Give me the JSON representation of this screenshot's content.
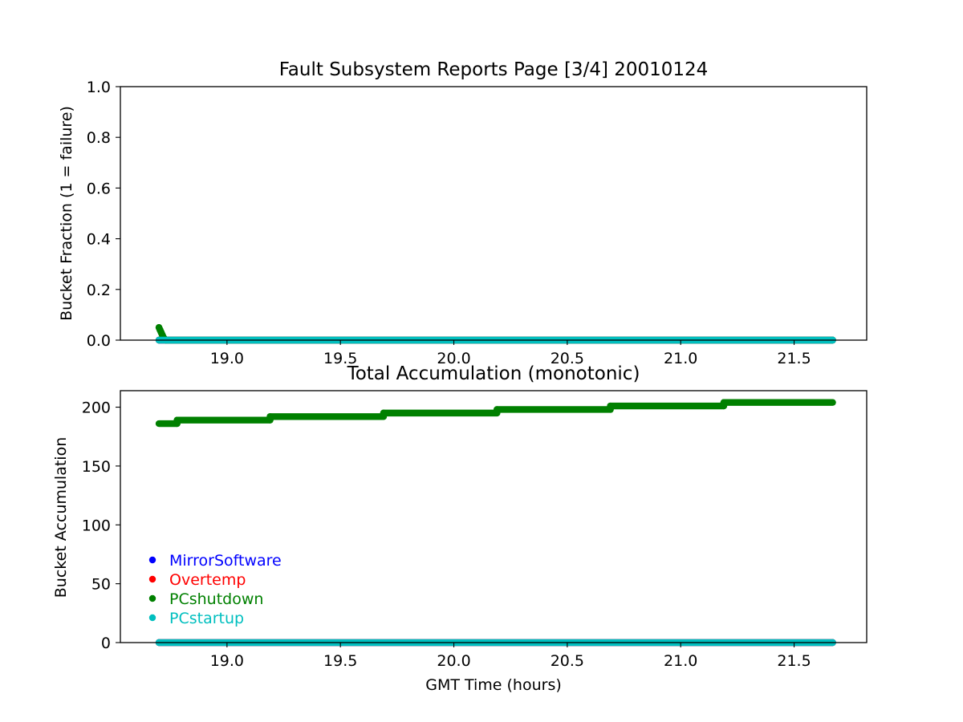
{
  "chart_data": [
    {
      "type": "scatter",
      "title": "Fault Subsystem Reports Page [3/4] 20010124",
      "xlabel": "",
      "ylabel": "Bucket Fraction (1 = failure)",
      "xlim": [
        18.53,
        21.82
      ],
      "ylim": [
        0,
        1
      ],
      "xticks": [
        "19.0",
        "19.5",
        "20.0",
        "20.5",
        "21.0",
        "21.5"
      ],
      "yticks": [
        "0.0",
        "0.2",
        "0.4",
        "0.6",
        "0.8",
        "1.0"
      ],
      "series": [
        {
          "name": "MirrorSoftware",
          "color": "#0000ff",
          "x": [
            18.7,
            21.67
          ],
          "y": [
            0,
            0
          ]
        },
        {
          "name": "Overtemp",
          "color": "#ff0000",
          "x": [
            18.7,
            21.67
          ],
          "y": [
            0,
            0
          ]
        },
        {
          "name": "PCshutdown",
          "color": "#008000",
          "x": [
            18.7,
            18.705,
            18.71,
            18.715,
            18.72,
            18.73,
            21.67
          ],
          "y": [
            0.05,
            0.04,
            0.03,
            0.02,
            0.01,
            0,
            0
          ]
        },
        {
          "name": "PCstartup",
          "color": "#00bfbf",
          "x": [
            18.7,
            21.67
          ],
          "y": [
            0,
            0
          ]
        }
      ]
    },
    {
      "type": "scatter",
      "title": "Total Accumulation (monotonic)",
      "xlabel": "GMT Time (hours)",
      "ylabel": "Bucket Accumulation",
      "xlim": [
        18.53,
        21.82
      ],
      "ylim": [
        0,
        214
      ],
      "xticks": [
        "19.0",
        "19.5",
        "20.0",
        "20.5",
        "21.0",
        "21.5"
      ],
      "yticks": [
        "0",
        "50",
        "100",
        "150",
        "200"
      ],
      "legend": "lower-left",
      "series": [
        {
          "name": "MirrorSoftware",
          "color": "#0000ff",
          "x": [
            18.7,
            21.67
          ],
          "y": [
            0,
            0
          ]
        },
        {
          "name": "Overtemp",
          "color": "#ff0000",
          "x": [
            18.7,
            21.67
          ],
          "y": [
            0,
            0
          ]
        },
        {
          "name": "PCshutdown",
          "color": "#008000",
          "steps": [
            {
              "x0": 18.7,
              "x1": 18.78,
              "y": 186
            },
            {
              "x0": 18.78,
              "x1": 19.19,
              "y": 189
            },
            {
              "x0": 19.19,
              "x1": 19.69,
              "y": 192
            },
            {
              "x0": 19.69,
              "x1": 20.19,
              "y": 195
            },
            {
              "x0": 20.19,
              "x1": 20.69,
              "y": 198
            },
            {
              "x0": 20.69,
              "x1": 21.19,
              "y": 201
            },
            {
              "x0": 21.19,
              "x1": 21.67,
              "y": 204
            }
          ]
        },
        {
          "name": "PCstartup",
          "color": "#00bfbf",
          "x": [
            18.7,
            21.67
          ],
          "y": [
            0,
            0
          ]
        }
      ]
    }
  ]
}
